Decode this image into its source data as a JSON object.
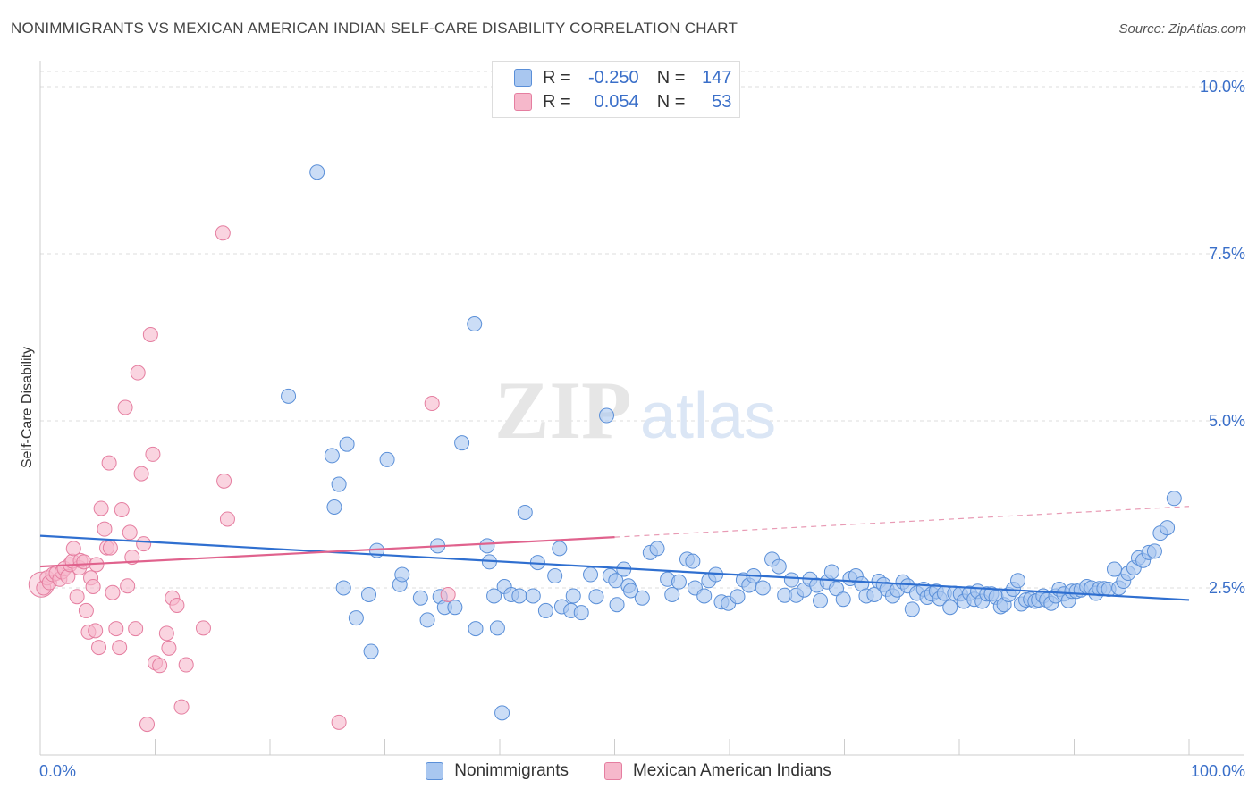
{
  "title": "NONIMMIGRANTS VS MEXICAN AMERICAN INDIAN SELF-CARE DISABILITY CORRELATION CHART",
  "source": "Source: ZipAtlas.com",
  "watermark": {
    "zip": "ZIP",
    "atlas": "atlas"
  },
  "legend_top": {
    "rows": [
      {
        "r_label": "R =",
        "r_value": "-0.250",
        "n_label": "N =",
        "n_value": "147"
      },
      {
        "r_label": "R =",
        "r_value": "0.054",
        "n_label": "N =",
        "n_value": "53"
      }
    ]
  },
  "colors": {
    "blue_fill": "#a9c7f0",
    "blue_stroke": "#5a8fd8",
    "blue_line": "#2f6fd0",
    "pink_fill": "#f6b8cb",
    "pink_stroke": "#e57ea0",
    "pink_line": "#e0628d",
    "tick_label": "#3a6fc9"
  },
  "chart_data": {
    "type": "scatter",
    "title": "NONIMMIGRANTS VS MEXICAN AMERICAN INDIAN SELF-CARE DISABILITY CORRELATION CHART",
    "xlabel": "",
    "ylabel": "Self-Care Disability",
    "xlim": [
      0,
      100
    ],
    "ylim": [
      0,
      10
    ],
    "x_tick_labels": [
      "0.0%",
      "100.0%"
    ],
    "y_ticks": [
      2.5,
      5.0,
      7.5,
      10.0
    ],
    "y_tick_labels": [
      "2.5%",
      "5.0%",
      "7.5%",
      "10.0%"
    ],
    "grid": "horizontal dashed",
    "legend_placement": "bottom-center",
    "series": [
      {
        "name": "Nonimmigrants",
        "color": "#a9c7f0",
        "trend": {
          "x": [
            0,
            100
          ],
          "y": [
            3.28,
            2.32
          ]
        },
        "points": [
          [
            24.1,
            8.72
          ],
          [
            37.8,
            6.45
          ],
          [
            21.6,
            5.37
          ],
          [
            49.3,
            5.08
          ],
          [
            25.4,
            4.48
          ],
          [
            26.7,
            4.65
          ],
          [
            30.2,
            4.42
          ],
          [
            36.7,
            4.67
          ],
          [
            26.0,
            4.05
          ],
          [
            25.6,
            3.71
          ],
          [
            42.2,
            3.63
          ],
          [
            29.3,
            3.06
          ],
          [
            34.6,
            3.13
          ],
          [
            38.9,
            3.13
          ],
          [
            39.1,
            2.89
          ],
          [
            43.3,
            2.88
          ],
          [
            45.2,
            3.09
          ],
          [
            26.4,
            2.5
          ],
          [
            28.6,
            2.4
          ],
          [
            31.3,
            2.55
          ],
          [
            31.5,
            2.7
          ],
          [
            33.1,
            2.35
          ],
          [
            34.8,
            2.37
          ],
          [
            35.2,
            2.21
          ],
          [
            36.1,
            2.21
          ],
          [
            27.5,
            2.05
          ],
          [
            33.7,
            2.02
          ],
          [
            28.8,
            1.55
          ],
          [
            37.9,
            1.89
          ],
          [
            39.8,
            1.9
          ],
          [
            39.5,
            2.38
          ],
          [
            40.4,
            2.52
          ],
          [
            41.0,
            2.4
          ],
          [
            41.7,
            2.38
          ],
          [
            42.9,
            2.38
          ],
          [
            44.0,
            2.16
          ],
          [
            44.8,
            2.68
          ],
          [
            45.4,
            2.22
          ],
          [
            46.2,
            2.16
          ],
          [
            46.4,
            2.38
          ],
          [
            47.1,
            2.13
          ],
          [
            47.9,
            2.7
          ],
          [
            48.4,
            2.37
          ],
          [
            49.6,
            2.68
          ],
          [
            50.1,
            2.61
          ],
          [
            50.8,
            2.78
          ],
          [
            50.2,
            2.25
          ],
          [
            51.2,
            2.53
          ],
          [
            51.4,
            2.46
          ],
          [
            52.4,
            2.35
          ],
          [
            53.1,
            3.03
          ],
          [
            53.7,
            3.09
          ],
          [
            54.6,
            2.63
          ],
          [
            55.0,
            2.4
          ],
          [
            55.6,
            2.59
          ],
          [
            56.3,
            2.93
          ],
          [
            56.8,
            2.9
          ],
          [
            57.0,
            2.5
          ],
          [
            57.8,
            2.38
          ],
          [
            58.2,
            2.61
          ],
          [
            58.8,
            2.7
          ],
          [
            59.3,
            2.29
          ],
          [
            59.9,
            2.27
          ],
          [
            60.7,
            2.37
          ],
          [
            61.2,
            2.62
          ],
          [
            61.7,
            2.54
          ],
          [
            62.1,
            2.68
          ],
          [
            62.9,
            2.5
          ],
          [
            63.7,
            2.93
          ],
          [
            64.3,
            2.82
          ],
          [
            64.8,
            2.39
          ],
          [
            65.4,
            2.62
          ],
          [
            65.8,
            2.39
          ],
          [
            66.5,
            2.47
          ],
          [
            67.0,
            2.63
          ],
          [
            67.6,
            2.54
          ],
          [
            67.9,
            2.31
          ],
          [
            68.5,
            2.59
          ],
          [
            68.9,
            2.74
          ],
          [
            69.3,
            2.49
          ],
          [
            69.9,
            2.33
          ],
          [
            70.5,
            2.64
          ],
          [
            71.0,
            2.68
          ],
          [
            71.5,
            2.56
          ],
          [
            71.9,
            2.38
          ],
          [
            72.6,
            2.4
          ],
          [
            73.0,
            2.6
          ],
          [
            73.4,
            2.55
          ],
          [
            73.7,
            2.48
          ],
          [
            74.2,
            2.38
          ],
          [
            74.6,
            2.47
          ],
          [
            75.1,
            2.59
          ],
          [
            75.5,
            2.53
          ],
          [
            75.9,
            2.18
          ],
          [
            76.3,
            2.42
          ],
          [
            76.9,
            2.48
          ],
          [
            77.2,
            2.36
          ],
          [
            77.6,
            2.41
          ],
          [
            78.0,
            2.45
          ],
          [
            78.3,
            2.34
          ],
          [
            78.7,
            2.42
          ],
          [
            79.2,
            2.21
          ],
          [
            79.6,
            2.42
          ],
          [
            80.1,
            2.41
          ],
          [
            80.4,
            2.3
          ],
          [
            80.9,
            2.42
          ],
          [
            81.3,
            2.33
          ],
          [
            81.6,
            2.45
          ],
          [
            82.0,
            2.3
          ],
          [
            82.4,
            2.41
          ],
          [
            82.8,
            2.41
          ],
          [
            83.2,
            2.36
          ],
          [
            83.6,
            2.22
          ],
          [
            83.9,
            2.25
          ],
          [
            84.3,
            2.4
          ],
          [
            84.7,
            2.48
          ],
          [
            85.1,
            2.61
          ],
          [
            85.4,
            2.26
          ],
          [
            85.8,
            2.32
          ],
          [
            86.2,
            2.33
          ],
          [
            86.6,
            2.3
          ],
          [
            86.9,
            2.32
          ],
          [
            87.3,
            2.38
          ],
          [
            87.6,
            2.32
          ],
          [
            88.0,
            2.27
          ],
          [
            88.4,
            2.38
          ],
          [
            88.7,
            2.48
          ],
          [
            89.1,
            2.41
          ],
          [
            89.5,
            2.31
          ],
          [
            89.8,
            2.45
          ],
          [
            90.2,
            2.45
          ],
          [
            90.6,
            2.47
          ],
          [
            91.1,
            2.52
          ],
          [
            91.5,
            2.5
          ],
          [
            91.9,
            2.42
          ],
          [
            92.2,
            2.49
          ],
          [
            92.6,
            2.49
          ],
          [
            93.0,
            2.48
          ],
          [
            93.5,
            2.78
          ],
          [
            93.9,
            2.5
          ],
          [
            94.3,
            2.6
          ],
          [
            94.7,
            2.72
          ],
          [
            95.2,
            2.8
          ],
          [
            95.6,
            2.95
          ],
          [
            96.0,
            2.91
          ],
          [
            96.5,
            3.03
          ],
          [
            97.0,
            3.05
          ],
          [
            97.5,
            3.32
          ],
          [
            98.1,
            3.4
          ],
          [
            98.7,
            3.84
          ],
          [
            40.2,
            0.63
          ]
        ]
      },
      {
        "name": "Mexican American Indians",
        "color": "#f6b8cb",
        "trend": {
          "x": [
            0,
            50
          ],
          "y": [
            2.82,
            3.26
          ],
          "dashed_to": {
            "x": 100,
            "y": 3.72
          }
        },
        "points": [
          [
            0.3,
            2.5
          ],
          [
            0.6,
            2.65
          ],
          [
            0.8,
            2.58
          ],
          [
            1.1,
            2.7
          ],
          [
            1.4,
            2.72
          ],
          [
            1.7,
            2.63
          ],
          [
            1.9,
            2.74
          ],
          [
            2.1,
            2.79
          ],
          [
            2.4,
            2.67
          ],
          [
            2.6,
            2.85
          ],
          [
            2.8,
            2.9
          ],
          [
            2.9,
            3.09
          ],
          [
            3.2,
            2.37
          ],
          [
            3.4,
            2.8
          ],
          [
            3.5,
            2.91
          ],
          [
            3.8,
            2.89
          ],
          [
            4.0,
            2.16
          ],
          [
            4.2,
            1.84
          ],
          [
            4.4,
            2.65
          ],
          [
            4.6,
            2.52
          ],
          [
            4.8,
            1.86
          ],
          [
            4.9,
            2.85
          ],
          [
            5.1,
            1.61
          ],
          [
            5.3,
            3.69
          ],
          [
            5.6,
            3.38
          ],
          [
            5.8,
            3.1
          ],
          [
            6.0,
            4.37
          ],
          [
            6.1,
            3.1
          ],
          [
            6.3,
            2.43
          ],
          [
            6.6,
            1.89
          ],
          [
            6.9,
            1.61
          ],
          [
            7.1,
            3.67
          ],
          [
            7.4,
            5.2
          ],
          [
            7.6,
            2.53
          ],
          [
            7.8,
            3.33
          ],
          [
            8.0,
            2.96
          ],
          [
            8.3,
            1.89
          ],
          [
            8.5,
            5.72
          ],
          [
            8.8,
            4.21
          ],
          [
            9.0,
            3.16
          ],
          [
            9.3,
            0.46
          ],
          [
            9.6,
            6.29
          ],
          [
            9.8,
            4.5
          ],
          [
            10.0,
            1.38
          ],
          [
            10.4,
            1.34
          ],
          [
            11.0,
            1.82
          ],
          [
            11.5,
            2.35
          ],
          [
            11.9,
            2.24
          ],
          [
            11.2,
            1.6
          ],
          [
            12.3,
            0.72
          ],
          [
            12.7,
            1.35
          ],
          [
            14.2,
            1.9
          ],
          [
            15.9,
            7.81
          ],
          [
            16.0,
            4.1
          ],
          [
            16.3,
            3.53
          ],
          [
            26.0,
            0.49
          ],
          [
            34.1,
            5.26
          ],
          [
            35.5,
            2.4
          ]
        ]
      }
    ]
  },
  "bottom_legend": [
    {
      "label": "Nonimmigrants"
    },
    {
      "label": "Mexican American Indians"
    }
  ]
}
